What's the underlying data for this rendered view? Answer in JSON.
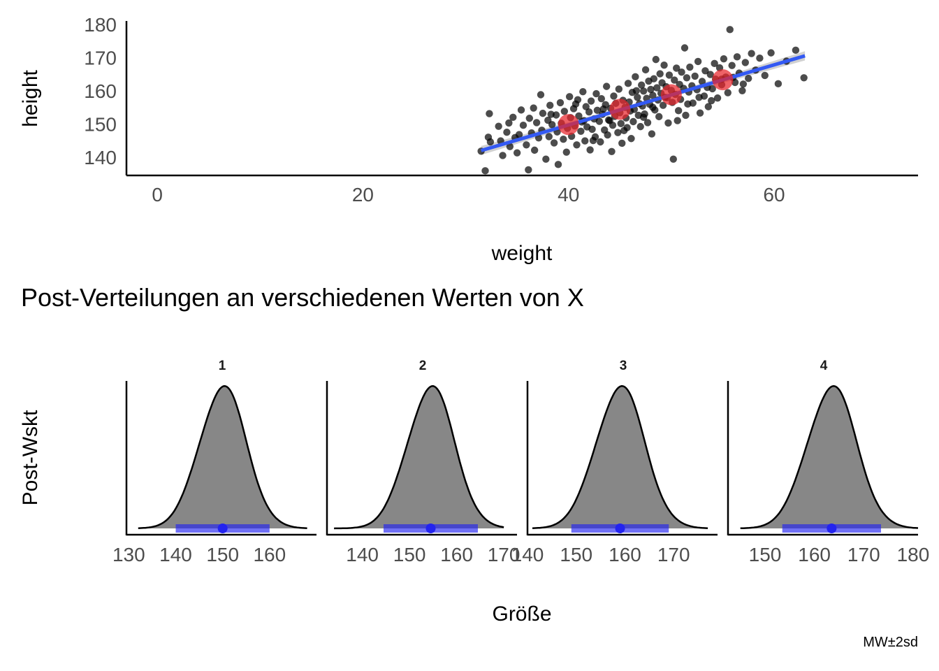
{
  "chart_data": [
    {
      "type": "scatter",
      "xlabel": "weight",
      "ylabel": "height",
      "xlim": [
        -3,
        74
      ],
      "ylim": [
        134.5,
        181
      ],
      "x_ticks": [
        0,
        20,
        40,
        60
      ],
      "y_ticks": [
        140,
        150,
        160,
        170,
        180
      ],
      "grid": false,
      "point_color": "#000000",
      "points": [
        [
          31.5,
          141.8
        ],
        [
          31.9,
          135.9
        ],
        [
          32.2,
          146.0
        ],
        [
          32.3,
          153.1
        ],
        [
          32.4,
          144.6
        ],
        [
          33.2,
          149.3
        ],
        [
          33.4,
          144.9
        ],
        [
          33.6,
          140.5
        ],
        [
          34.0,
          147.5
        ],
        [
          34.2,
          150.3
        ],
        [
          34.3,
          143.2
        ],
        [
          34.6,
          152.0
        ],
        [
          34.8,
          145.9
        ],
        [
          35.0,
          141.3
        ],
        [
          35.2,
          146.8
        ],
        [
          35.4,
          154.2
        ],
        [
          35.6,
          149.6
        ],
        [
          35.9,
          143.7
        ],
        [
          36.1,
          136.2
        ],
        [
          36.2,
          151.7
        ],
        [
          36.4,
          147.3
        ],
        [
          36.6,
          154.8
        ],
        [
          36.7,
          142.1
        ],
        [
          36.9,
          150.4
        ],
        [
          37.1,
          145.8
        ],
        [
          37.3,
          158.8
        ],
        [
          37.4,
          148.1
        ],
        [
          37.5,
          153.2
        ],
        [
          37.8,
          139.4
        ],
        [
          38.0,
          151.1
        ],
        [
          38.1,
          146.2
        ],
        [
          38.2,
          155.6
        ],
        [
          38.4,
          149.8
        ],
        [
          38.6,
          144.3
        ],
        [
          38.8,
          152.7
        ],
        [
          38.9,
          147.6
        ],
        [
          39.0,
          137.8
        ],
        [
          39.2,
          156.4
        ],
        [
          39.3,
          150.2
        ],
        [
          39.5,
          145.4
        ],
        [
          39.6,
          153.8
        ],
        [
          39.8,
          141.5
        ],
        [
          39.9,
          148.7
        ],
        [
          40.1,
          158.2
        ],
        [
          40.2,
          151.9
        ],
        [
          40.3,
          146.3
        ],
        [
          40.5,
          154.6
        ],
        [
          40.6,
          149.4
        ],
        [
          40.8,
          143.7
        ],
        [
          40.9,
          157.3
        ],
        [
          41.0,
          152.4
        ],
        [
          41.2,
          147.8
        ],
        [
          41.3,
          150.6
        ],
        [
          41.4,
          159.7
        ],
        [
          41.6,
          144.9
        ],
        [
          41.7,
          155.2
        ],
        [
          41.8,
          149.1
        ],
        [
          42.0,
          153.6
        ],
        [
          42.1,
          142.2
        ],
        [
          42.2,
          156.9
        ],
        [
          42.3,
          148.4
        ],
        [
          42.5,
          151.5
        ],
        [
          42.6,
          146.1
        ],
        [
          42.7,
          159.1
        ],
        [
          42.8,
          154.1
        ],
        [
          43.0,
          150.8
        ],
        [
          43.1,
          144.6
        ],
        [
          43.2,
          157.6
        ],
        [
          43.3,
          152.9
        ],
        [
          43.5,
          148.2
        ],
        [
          43.6,
          155.8
        ],
        [
          43.7,
          161.3
        ],
        [
          43.8,
          146.7
        ],
        [
          43.9,
          151.2
        ],
        [
          44.1,
          154.7
        ],
        [
          44.2,
          141.7
        ],
        [
          44.3,
          149.6
        ],
        [
          44.4,
          158.4
        ],
        [
          44.5,
          152.3
        ],
        [
          44.6,
          156.2
        ],
        [
          44.8,
          147.4
        ],
        [
          44.9,
          160.5
        ],
        [
          45.0,
          153.4
        ],
        [
          45.1,
          150.1
        ],
        [
          45.2,
          144.2
        ],
        [
          45.3,
          157.1
        ],
        [
          45.5,
          155.0
        ],
        [
          45.6,
          151.8
        ],
        [
          45.7,
          148.9
        ],
        [
          45.8,
          162.2
        ],
        [
          45.9,
          156.6
        ],
        [
          46.0,
          153.9
        ],
        [
          46.1,
          145.6
        ],
        [
          46.2,
          159.5
        ],
        [
          46.3,
          150.7
        ],
        [
          46.4,
          154.4
        ],
        [
          46.5,
          164.2
        ],
        [
          46.7,
          158.0
        ],
        [
          46.8,
          152.6
        ],
        [
          46.9,
          156.1
        ],
        [
          47.0,
          149.2
        ],
        [
          47.1,
          161.7
        ],
        [
          47.2,
          155.4
        ],
        [
          47.3,
          159.9
        ],
        [
          47.4,
          153.0
        ],
        [
          47.5,
          166.3
        ],
        [
          47.6,
          157.7
        ],
        [
          47.7,
          150.4
        ],
        [
          47.8,
          162.9
        ],
        [
          47.9,
          155.9
        ],
        [
          48.0,
          160.4
        ],
        [
          48.1,
          147.0
        ],
        [
          48.2,
          158.6
        ],
        [
          48.3,
          163.6
        ],
        [
          48.4,
          154.2
        ],
        [
          48.5,
          169.4
        ],
        [
          48.6,
          160.9
        ],
        [
          48.7,
          157.2
        ],
        [
          48.8,
          152.2
        ],
        [
          48.9,
          165.1
        ],
        [
          49.0,
          159.2
        ],
        [
          49.1,
          162.4
        ],
        [
          49.2,
          155.6
        ],
        [
          49.3,
          167.7
        ],
        [
          49.5,
          161.2
        ],
        [
          49.6,
          157.9
        ],
        [
          49.7,
          150.3
        ],
        [
          49.8,
          164.7
        ],
        [
          50.0,
          160.1
        ],
        [
          50.1,
          156.5
        ],
        [
          50.2,
          139.4
        ],
        [
          50.3,
          163.2
        ],
        [
          50.4,
          158.9
        ],
        [
          50.5,
          166.8
        ],
        [
          50.7,
          154.0
        ],
        [
          50.8,
          161.9
        ],
        [
          50.9,
          157.4
        ],
        [
          51.0,
          165.6
        ],
        [
          51.2,
          160.7
        ],
        [
          51.3,
          172.9
        ],
        [
          51.4,
          152.6
        ],
        [
          51.5,
          163.9
        ],
        [
          51.7,
          159.6
        ],
        [
          51.8,
          167.1
        ],
        [
          52.0,
          161.5
        ],
        [
          52.1,
          156.3
        ],
        [
          52.3,
          164.4
        ],
        [
          52.5,
          160.3
        ],
        [
          52.6,
          168.8
        ],
        [
          52.8,
          153.3
        ],
        [
          53.0,
          162.8
        ],
        [
          53.2,
          158.4
        ],
        [
          53.3,
          166.0
        ],
        [
          53.5,
          161.0
        ],
        [
          53.6,
          155.2
        ],
        [
          53.8,
          164.9
        ],
        [
          54.0,
          160.6
        ],
        [
          54.2,
          168.2
        ],
        [
          54.3,
          163.5
        ],
        [
          54.5,
          157.8
        ],
        [
          54.7,
          166.9
        ],
        [
          54.9,
          161.8
        ],
        [
          55.1,
          169.6
        ],
        [
          55.3,
          164.1
        ],
        [
          55.5,
          159.4
        ],
        [
          55.7,
          178.4
        ],
        [
          55.9,
          167.6
        ],
        [
          56.2,
          162.5
        ],
        [
          56.4,
          170.2
        ],
        [
          56.6,
          165.3
        ],
        [
          56.9,
          160.0
        ],
        [
          57.2,
          168.5
        ],
        [
          57.5,
          163.7
        ],
        [
          57.8,
          171.2
        ],
        [
          58.2,
          166.2
        ],
        [
          58.6,
          169.8
        ],
        [
          59.1,
          164.6
        ],
        [
          59.7,
          171.4
        ],
        [
          60.4,
          162.1
        ],
        [
          61.2,
          168.9
        ],
        [
          62.1,
          172.2
        ],
        [
          62.9,
          163.9
        ],
        [
          38.3,
          152.9
        ],
        [
          40.7,
          156.0
        ],
        [
          42.4,
          145.0
        ],
        [
          44.0,
          151.0
        ],
        [
          45.4,
          148.0
        ],
        [
          46.6,
          160.0
        ],
        [
          47.3,
          152.0
        ],
        [
          48.2,
          155.0
        ],
        [
          49.4,
          158.0
        ],
        [
          50.6,
          151.0
        ],
        [
          51.6,
          156.0
        ],
        [
          52.7,
          158.0
        ],
        [
          53.9,
          157.0
        ],
        [
          54.9,
          163.5
        ],
        [
          56.0,
          164.0
        ],
        [
          57.0,
          162.0
        ],
        [
          43.4,
          154.5
        ],
        [
          41.5,
          151.0
        ]
      ],
      "predictions": {
        "x": [
          40,
          45,
          50,
          55
        ],
        "y": [
          149.8,
          154.4,
          158.8,
          163.3
        ],
        "color": "#e8262d"
      },
      "regression_line": {
        "x": [
          31.5,
          63
        ],
        "y": [
          142.0,
          170.5
        ],
        "color": "#3359f3"
      }
    },
    {
      "type": "area",
      "title": "Post-Verteilungen an verschiedenen Werten von X",
      "xlabel": "Größe",
      "ylabel": "Post-Wskt",
      "caption": "MW±2sd",
      "fill_color": "#878787",
      "interval_color": "#2323f0",
      "panels": [
        {
          "label": "1",
          "xlim": [
            129.5,
            170.0
          ],
          "x_ticks": [
            130,
            140,
            150,
            160
          ],
          "mean": 150.0,
          "sd": 5.0,
          "min": 132,
          "max": 168
        },
        {
          "label": "2",
          "xlim": [
            132.5,
            172.8
          ],
          "x_ticks": [
            140,
            150,
            160,
            170
          ],
          "mean": 154.5,
          "sd": 5.0,
          "min": 134,
          "max": 170
        },
        {
          "label": "3",
          "xlim": [
            140.0,
            179.0
          ],
          "x_ticks": [
            140,
            150,
            160,
            170
          ],
          "mean": 159.0,
          "sd": 5.0,
          "min": 141,
          "max": 177
        },
        {
          "label": "4",
          "xlim": [
            142.5,
            181.0
          ],
          "x_ticks": [
            150,
            160,
            170,
            180
          ],
          "mean": 163.5,
          "sd": 5.0,
          "min": 145,
          "max": 181
        }
      ]
    }
  ]
}
